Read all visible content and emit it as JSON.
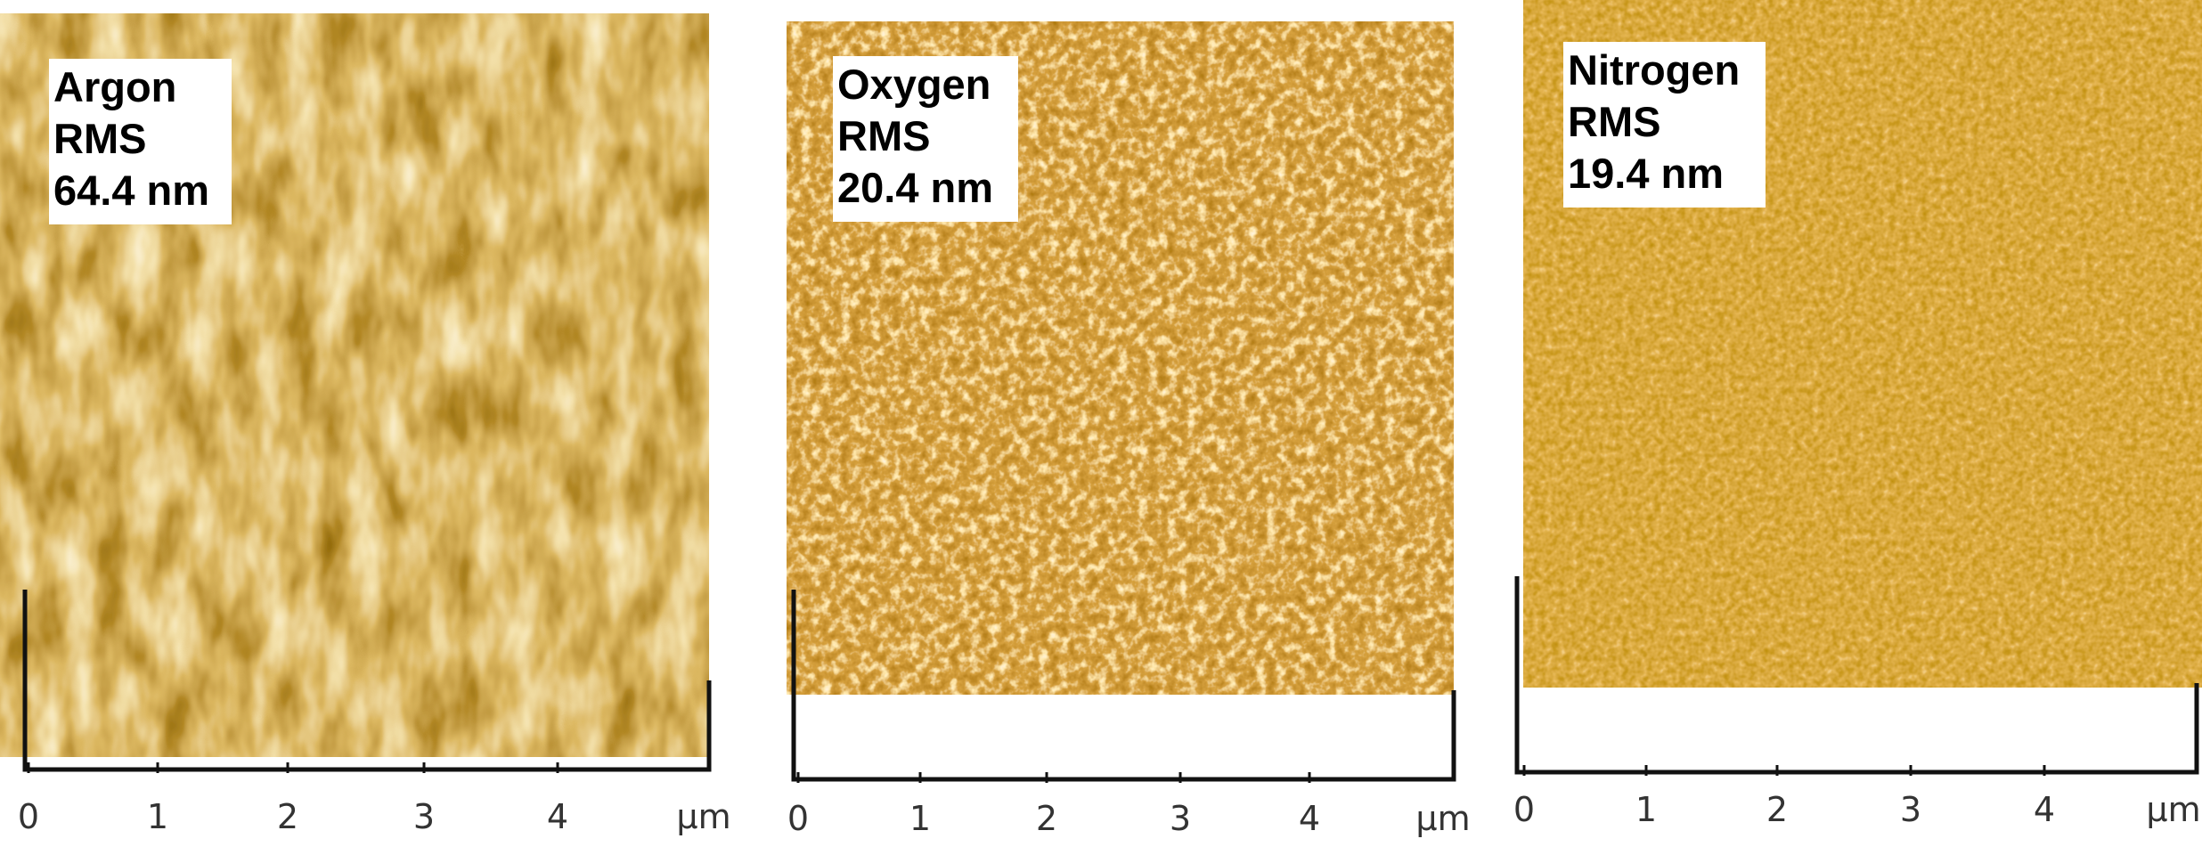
{
  "panels": [
    {
      "gas": "Argon",
      "metric": "RMS",
      "rms": "64.4 nm",
      "ticks": [
        "0",
        "1",
        "2",
        "3",
        "4"
      ],
      "unit": "µm"
    },
    {
      "gas": "Oxygen",
      "metric": "RMS",
      "rms": "20.4 nm",
      "ticks": [
        "0",
        "1",
        "2",
        "3",
        "4"
      ],
      "unit": "µm"
    },
    {
      "gas": "Nitrogen",
      "metric": "RMS",
      "rms": "19.4 nm",
      "ticks": [
        "0",
        "1",
        "2",
        "3",
        "4"
      ],
      "unit": "µm"
    }
  ]
}
